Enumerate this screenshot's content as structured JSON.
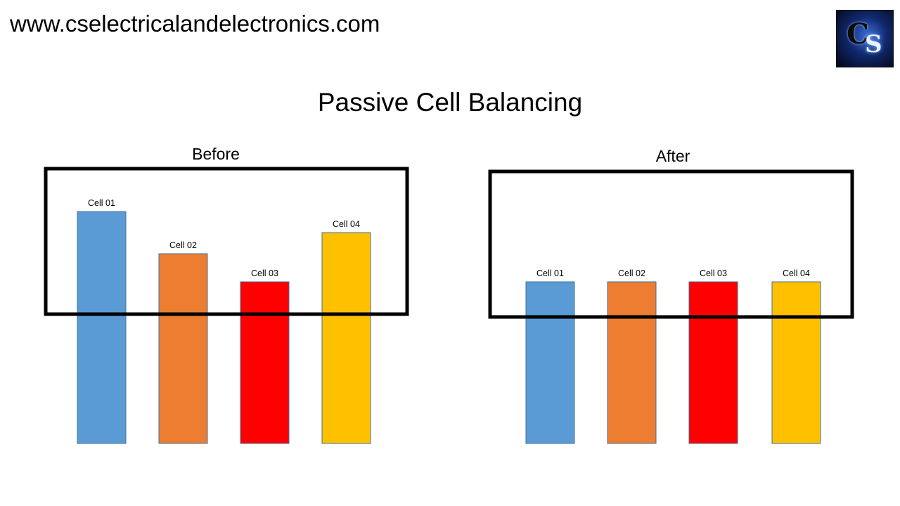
{
  "header": {
    "site_url": "www.cselectricalandelectronics.com",
    "logo_icon": "cs-logo-icon"
  },
  "title": "Passive Cell Balancing",
  "panels": [
    {
      "title": "Before"
    },
    {
      "title": "After"
    }
  ],
  "chart_data": [
    {
      "type": "bar",
      "title": "Before",
      "categories": [
        "Cell 01",
        "Cell 02",
        "Cell 03",
        "Cell 04"
      ],
      "values": [
        330,
        270,
        230,
        300
      ],
      "colors": [
        "#5b9bd5",
        "#ed7d31",
        "#ff0000",
        "#ffc000"
      ],
      "ylim": [
        0,
        330
      ],
      "highlight_box": true
    },
    {
      "type": "bar",
      "title": "After",
      "categories": [
        "Cell 01",
        "Cell 02",
        "Cell 03",
        "Cell 04"
      ],
      "values": [
        230,
        230,
        230,
        230
      ],
      "colors": [
        "#5b9bd5",
        "#ed7d31",
        "#ff0000",
        "#ffc000"
      ],
      "ylim": [
        0,
        330
      ],
      "highlight_box": true
    }
  ]
}
